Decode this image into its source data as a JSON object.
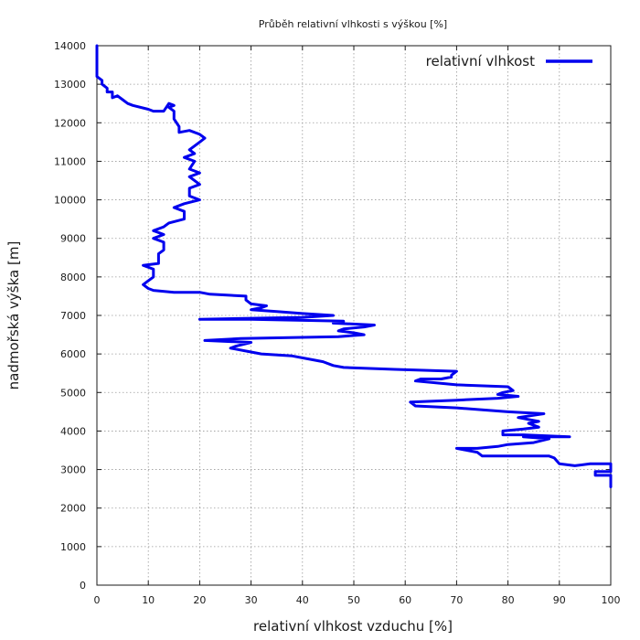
{
  "chart_data": {
    "type": "line",
    "title": "Průběh relativní vlhkosti s výškou [%]",
    "xlabel": "relativní vlhkost vzduchu [%]",
    "ylabel": "nadmořská výška [m]",
    "xlim": [
      0,
      100
    ],
    "ylim": [
      0,
      14000
    ],
    "xticks": [
      "0",
      "10",
      "20",
      "30",
      "40",
      "50",
      "60",
      "70",
      "80",
      "90",
      "100"
    ],
    "yticks": [
      "0",
      "1000",
      "2000",
      "3000",
      "4000",
      "5000",
      "6000",
      "7000",
      "8000",
      "9000",
      "10000",
      "11000",
      "12000",
      "13000",
      "14000"
    ],
    "grid": true,
    "legend_position": "top-right",
    "series": [
      {
        "name": "relativní vlhkost",
        "color": "#0000ee",
        "points": [
          [
            100,
            2550
          ],
          [
            100,
            2850
          ],
          [
            97,
            2850
          ],
          [
            97,
            2950
          ],
          [
            100,
            2950
          ],
          [
            100,
            3150
          ],
          [
            96,
            3150
          ],
          [
            93,
            3100
          ],
          [
            90,
            3150
          ],
          [
            89,
            3300
          ],
          [
            88,
            3350
          ],
          [
            75,
            3350
          ],
          [
            74,
            3450
          ],
          [
            72,
            3500
          ],
          [
            70,
            3550
          ],
          [
            74,
            3550
          ],
          [
            78,
            3600
          ],
          [
            80,
            3650
          ],
          [
            85,
            3700
          ],
          [
            88,
            3800
          ],
          [
            83,
            3850
          ],
          [
            92,
            3850
          ],
          [
            83,
            3900
          ],
          [
            79,
            3900
          ],
          [
            79,
            4000
          ],
          [
            83,
            4050
          ],
          [
            86,
            4100
          ],
          [
            84,
            4200
          ],
          [
            86,
            4250
          ],
          [
            84,
            4300
          ],
          [
            82,
            4350
          ],
          [
            87,
            4450
          ],
          [
            80,
            4500
          ],
          [
            75,
            4550
          ],
          [
            70,
            4600
          ],
          [
            62,
            4650
          ],
          [
            61,
            4750
          ],
          [
            70,
            4800
          ],
          [
            78,
            4850
          ],
          [
            82,
            4900
          ],
          [
            78,
            4950
          ],
          [
            79,
            5000
          ],
          [
            81,
            5050
          ],
          [
            80,
            5150
          ],
          [
            70,
            5200
          ],
          [
            66,
            5250
          ],
          [
            62,
            5300
          ],
          [
            63,
            5350
          ],
          [
            67,
            5350
          ],
          [
            69,
            5400
          ],
          [
            69,
            5450
          ],
          [
            70,
            5550
          ],
          [
            58,
            5600
          ],
          [
            48,
            5650
          ],
          [
            46,
            5700
          ],
          [
            44,
            5800
          ],
          [
            42,
            5850
          ],
          [
            38,
            5950
          ],
          [
            32,
            6000
          ],
          [
            30,
            6050
          ],
          [
            26,
            6150
          ],
          [
            27,
            6200
          ],
          [
            30,
            6300
          ],
          [
            21,
            6350
          ],
          [
            28,
            6400
          ],
          [
            47,
            6450
          ],
          [
            52,
            6500
          ],
          [
            50,
            6550
          ],
          [
            47,
            6600
          ],
          [
            48,
            6650
          ],
          [
            52,
            6700
          ],
          [
            54,
            6750
          ],
          [
            46,
            6800
          ],
          [
            48,
            6850
          ],
          [
            30,
            6900
          ],
          [
            20,
            6900
          ],
          [
            40,
            6950
          ],
          [
            46,
            7000
          ],
          [
            40,
            7050
          ],
          [
            35,
            7100
          ],
          [
            30,
            7150
          ],
          [
            32,
            7200
          ],
          [
            33,
            7250
          ],
          [
            30,
            7300
          ],
          [
            29,
            7400
          ],
          [
            29,
            7500
          ],
          [
            22,
            7550
          ],
          [
            20,
            7600
          ],
          [
            15,
            7600
          ],
          [
            11,
            7650
          ],
          [
            10,
            7700
          ],
          [
            9,
            7800
          ],
          [
            10,
            7900
          ],
          [
            11,
            8000
          ],
          [
            11,
            8200
          ],
          [
            9,
            8300
          ],
          [
            12,
            8350
          ],
          [
            12,
            8600
          ],
          [
            13,
            8700
          ],
          [
            13,
            8900
          ],
          [
            11,
            9000
          ],
          [
            13,
            9100
          ],
          [
            11,
            9200
          ],
          [
            13,
            9300
          ],
          [
            14,
            9400
          ],
          [
            17,
            9500
          ],
          [
            17,
            9700
          ],
          [
            15,
            9800
          ],
          [
            17,
            9900
          ],
          [
            20,
            10000
          ],
          [
            18,
            10100
          ],
          [
            18,
            10300
          ],
          [
            20,
            10400
          ],
          [
            18,
            10600
          ],
          [
            20,
            10700
          ],
          [
            18,
            10800
          ],
          [
            19,
            11000
          ],
          [
            17,
            11100
          ],
          [
            19,
            11200
          ],
          [
            18,
            11300
          ],
          [
            20,
            11500
          ],
          [
            21,
            11600
          ],
          [
            20,
            11700
          ],
          [
            18,
            11800
          ],
          [
            16,
            11750
          ],
          [
            16,
            11900
          ],
          [
            15,
            12100
          ],
          [
            15,
            12300
          ],
          [
            14,
            12400
          ],
          [
            15,
            12450
          ],
          [
            14,
            12500
          ],
          [
            13,
            12300
          ],
          [
            11,
            12300
          ],
          [
            10,
            12350
          ],
          [
            7,
            12450
          ],
          [
            6,
            12500
          ],
          [
            5,
            12600
          ],
          [
            4,
            12700
          ],
          [
            3,
            12650
          ],
          [
            3,
            12800
          ],
          [
            2,
            12800
          ],
          [
            2,
            12900
          ],
          [
            1,
            13000
          ],
          [
            1,
            13100
          ],
          [
            0,
            13200
          ],
          [
            0,
            14000
          ]
        ]
      }
    ]
  }
}
